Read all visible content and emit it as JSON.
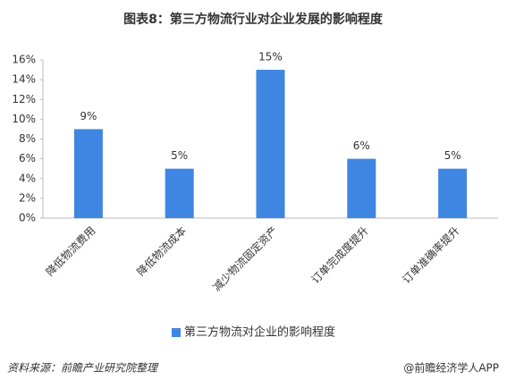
{
  "chart_data": {
    "type": "bar",
    "title": "图表8：第三方物流行业对企业发展的影响程度",
    "categories": [
      "降低物流费用",
      "降低物流成本",
      "减少物流固定资产",
      "订单完成度提升",
      "订单准确率提升"
    ],
    "series": [
      {
        "name": "第三方物流对企业的影响程度",
        "color": "#3f86e2",
        "values": [
          9,
          5,
          15,
          6,
          5
        ],
        "value_labels": [
          "9%",
          "5%",
          "15%",
          "6%",
          "5%"
        ]
      }
    ],
    "ylim": [
      0,
      16
    ],
    "yticks": [
      {
        "value": 0,
        "label": "0%"
      },
      {
        "value": 2,
        "label": "2%"
      },
      {
        "value": 4,
        "label": "4%"
      },
      {
        "value": 6,
        "label": "6%"
      },
      {
        "value": 8,
        "label": "8%"
      },
      {
        "value": 10,
        "label": "10%"
      },
      {
        "value": 12,
        "label": "12%"
      },
      {
        "value": 14,
        "label": "14%"
      },
      {
        "value": 16,
        "label": "16%"
      }
    ],
    "grid": false,
    "legend": "bottom",
    "source": "资料来源：前瞻产业研究院整理",
    "credit": "@前瞻经济学人APP"
  }
}
